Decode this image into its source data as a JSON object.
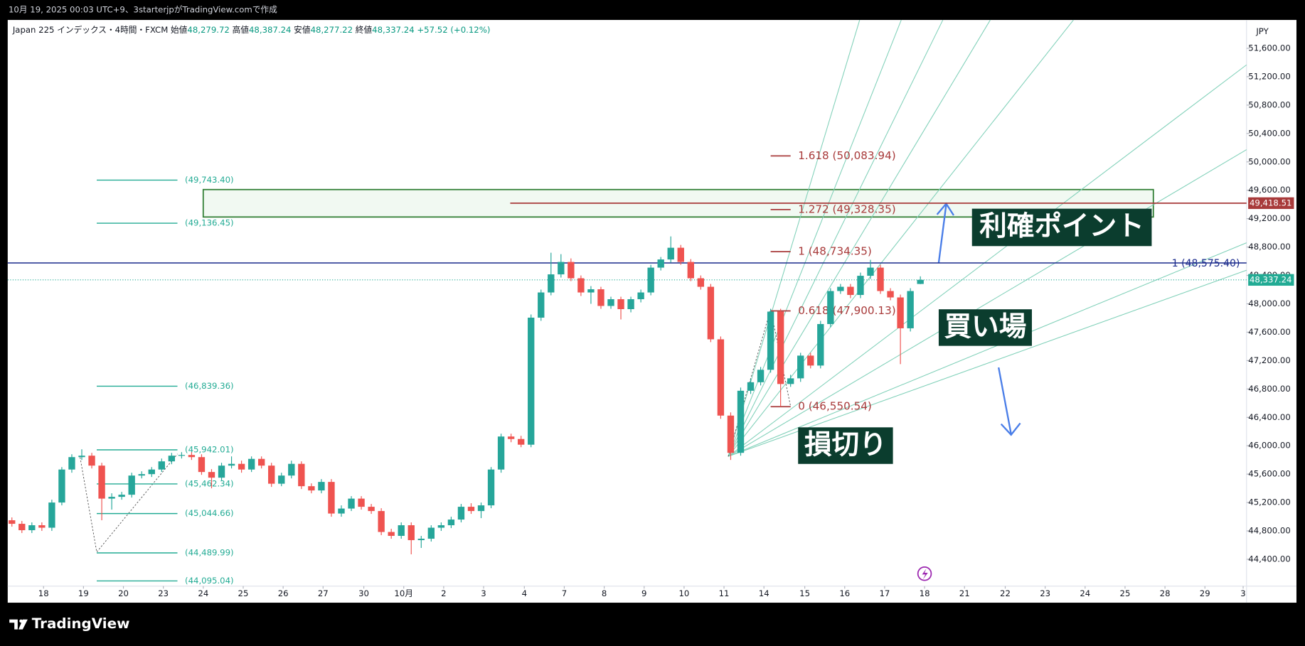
{
  "caption": "10月 19, 2025 00:03 UTC+9、3starterjpがTradingView.comで作成",
  "brand": "TradingView",
  "chart_data": {
    "type": "candlestick",
    "symbol": "Japan 225 インデックス・4時間・FXCM",
    "ohlc_info": [
      {
        "name": "始値",
        "value": 48279.72,
        "label": "48,279.72"
      },
      {
        "name": "高値",
        "value": 48387.24,
        "label": "48,387.24"
      },
      {
        "name": "安値",
        "value": 48277.22,
        "label": "48,277.22"
      },
      {
        "name": "終値",
        "value": 48337.24,
        "label": "48,337.24"
      }
    ],
    "change": {
      "value": 57.52,
      "label": "+57.52 (+0.12%)"
    },
    "currency": "JPY",
    "up_color": "#26a69a",
    "down_color": "#ef5350",
    "grid": false,
    "open": [
      44950,
      44900,
      44810,
      44880,
      44845,
      45200,
      45665,
      45840,
      45860,
      45720,
      45255,
      45280,
      45310,
      45580,
      45600,
      45665,
      45780,
      45860,
      45870,
      45840,
      45630,
      45550,
      45720,
      45745,
      45665,
      45815,
      45720,
      45465,
      45580,
      45745,
      45430,
      45370,
      45490,
      45045,
      45115,
      45255,
      45140,
      45080,
      44785,
      44730,
      44880,
      44670,
      44690,
      44845,
      44880,
      44960,
      45140,
      45080,
      45160,
      45665,
      46130,
      46095,
      46015,
      47805,
      48160,
      48415,
      48590,
      48360,
      48160,
      48205,
      47970,
      48065,
      47925,
      48065,
      48160,
      48510,
      48625,
      48790,
      48590,
      48360,
      48240,
      47500,
      46425,
      45900,
      46775,
      46895,
      47070,
      47890,
      46870,
      46950,
      47270,
      47130,
      47715,
      48180,
      48240,
      48125,
      48395,
      48510,
      48180,
      48090,
      47655,
      48279.72
    ],
    "high": [
      44990,
      44940,
      44920,
      44920,
      45240,
      45700,
      45880,
      45950,
      45900,
      45760,
      45330,
      45350,
      45620,
      45640,
      45700,
      45820,
      45900,
      45910,
      45910,
      45880,
      45670,
      45760,
      45850,
      45790,
      45850,
      45850,
      45760,
      45620,
      45790,
      45780,
      45470,
      45530,
      45530,
      45160,
      45290,
      45290,
      45180,
      45120,
      44830,
      44920,
      44920,
      44730,
      44880,
      44920,
      45000,
      45180,
      45190,
      45200,
      45700,
      46170,
      46170,
      46140,
      47850,
      48200,
      48720,
      48700,
      48640,
      48400,
      48250,
      48240,
      48100,
      48100,
      48100,
      48200,
      48550,
      48660,
      48950,
      48830,
      48630,
      48400,
      48280,
      47540,
      46470,
      46820,
      46940,
      47110,
      47930,
      47930,
      47000,
      47310,
      47310,
      47760,
      48220,
      48280,
      48280,
      48440,
      48620,
      48550,
      48220,
      48130,
      48220,
      48387.24
    ],
    "low": [
      44860,
      44770,
      44770,
      44800,
      44800,
      45160,
      45620,
      45800,
      45680,
      44950,
      45100,
      45240,
      45270,
      45540,
      45560,
      45630,
      45740,
      45820,
      45800,
      45590,
      45400,
      45510,
      45680,
      45620,
      45630,
      45680,
      45420,
      45430,
      45540,
      45390,
      45330,
      45330,
      45000,
      45000,
      45080,
      45100,
      45040,
      44740,
      44690,
      44690,
      44470,
      44560,
      44650,
      44800,
      44840,
      44920,
      45040,
      44980,
      45120,
      45620,
      46050,
      45980,
      45980,
      47760,
      48120,
      48370,
      48320,
      48110,
      48000,
      47930,
      47930,
      47780,
      47880,
      48020,
      48120,
      48470,
      48580,
      48550,
      48320,
      48200,
      47460,
      46380,
      45800,
      45860,
      46730,
      46850,
      47030,
      46550,
      46830,
      46900,
      47090,
      47090,
      47670,
      48140,
      48080,
      48080,
      48350,
      48140,
      48050,
      47150,
      47610,
      48277.22
    ],
    "close": [
      44900,
      44810,
      44880,
      44845,
      45200,
      45665,
      45840,
      45860,
      45720,
      45255,
      45280,
      45310,
      45580,
      45600,
      45665,
      45780,
      45860,
      45870,
      45840,
      45630,
      45550,
      45720,
      45745,
      45665,
      45815,
      45720,
      45465,
      45580,
      45745,
      45430,
      45370,
      45490,
      45045,
      45115,
      45255,
      45140,
      45080,
      44785,
      44730,
      44880,
      44670,
      44690,
      44845,
      44880,
      44960,
      45140,
      45080,
      45160,
      45665,
      46130,
      46095,
      46015,
      47805,
      48160,
      48415,
      48590,
      48360,
      48160,
      48205,
      47970,
      48065,
      47925,
      48065,
      48160,
      48510,
      48625,
      48790,
      48590,
      48360,
      48240,
      47500,
      46425,
      45900,
      46775,
      46895,
      47070,
      47890,
      46870,
      46950,
      47270,
      47130,
      47715,
      48180,
      48240,
      48125,
      48395,
      48510,
      48180,
      48090,
      47655,
      48180,
      48337.24
    ],
    "xlim": [
      -0.42,
      123.67
    ],
    "xticks": [
      {
        "value": 3.17,
        "label": "18"
      },
      {
        "value": 7.17,
        "label": "19"
      },
      {
        "value": 11.17,
        "label": "20"
      },
      {
        "value": 15.17,
        "label": "23"
      },
      {
        "value": 19.17,
        "label": "24"
      },
      {
        "value": 23.17,
        "label": "25"
      },
      {
        "value": 27.17,
        "label": "26"
      },
      {
        "value": 31.17,
        "label": "27"
      },
      {
        "value": 35.25,
        "label": "30"
      },
      {
        "value": 39.25,
        "label": "10月"
      },
      {
        "value": 43.25,
        "label": "2"
      },
      {
        "value": 47.25,
        "label": "3"
      },
      {
        "value": 51.33,
        "label": "4"
      },
      {
        "value": 55.33,
        "label": "7"
      },
      {
        "value": 59.33,
        "label": "8"
      },
      {
        "value": 63.33,
        "label": "9"
      },
      {
        "value": 67.33,
        "label": "10"
      },
      {
        "value": 71.33,
        "label": "11"
      },
      {
        "value": 75.33,
        "label": "14"
      },
      {
        "value": 79.42,
        "label": "15"
      },
      {
        "value": 83.42,
        "label": "16"
      },
      {
        "value": 87.42,
        "label": "17"
      },
      {
        "value": 91.42,
        "label": "18"
      },
      {
        "value": 95.42,
        "label": "21"
      },
      {
        "value": 99.5,
        "label": "22"
      },
      {
        "value": 103.5,
        "label": "23"
      },
      {
        "value": 107.5,
        "label": "24"
      },
      {
        "value": 111.5,
        "label": "25"
      },
      {
        "value": 115.5,
        "label": "28"
      },
      {
        "value": 119.5,
        "label": "29"
      },
      {
        "value": 123.33,
        "label": "3"
      }
    ],
    "ylim": [
      44010,
      52000
    ],
    "yticks": [
      {
        "value": 44400,
        "label": "44,400.00"
      },
      {
        "value": 44800,
        "label": "44,800.00"
      },
      {
        "value": 45200,
        "label": "45,200.00"
      },
      {
        "value": 45600,
        "label": "45,600.00"
      },
      {
        "value": 46000,
        "label": "46,000.00"
      },
      {
        "value": 46400,
        "label": "46,400.00"
      },
      {
        "value": 46800,
        "label": "46,800.00"
      },
      {
        "value": 47200,
        "label": "47,200.00"
      },
      {
        "value": 47600,
        "label": "47,600.00"
      },
      {
        "value": 48000,
        "label": "48,000.00"
      },
      {
        "value": 48400,
        "label": "48,400.00"
      },
      {
        "value": 48800,
        "label": "48,800.00"
      },
      {
        "value": 49200,
        "label": "49,200.00"
      },
      {
        "value": 49600,
        "label": "49,600.00"
      },
      {
        "value": 50000,
        "label": "50,000.00"
      },
      {
        "value": 50400,
        "label": "50,400.00"
      },
      {
        "value": 50800,
        "label": "50,800.00"
      },
      {
        "value": 51200,
        "label": "51,200.00"
      },
      {
        "value": 51600,
        "label": "51,600.00"
      }
    ],
    "fib_levels": [
      {
        "value": 50083.94,
        "label": "1.618 (50,083.94)"
      },
      {
        "value": 49328.35,
        "label": "1.272 (49,328.35)"
      },
      {
        "value": 48734.35,
        "label": "1 (48,734.35)"
      },
      {
        "value": 47900.13,
        "label": "0.618 (47,900.13)"
      },
      {
        "value": 46550.54,
        "label": "0 (46,550.54)"
      }
    ],
    "levels": [
      {
        "value": 49743.4,
        "label": "(49,743.40)"
      },
      {
        "value": 49136.45,
        "label": "(49,136.45)"
      },
      {
        "value": 46839.36,
        "label": "(46,839.36)"
      },
      {
        "value": 45942.01,
        "label": "(45,942.01)"
      },
      {
        "value": 45462.34,
        "label": "(45,462.34)"
      },
      {
        "value": 45044.66,
        "label": "(45,044.66)"
      },
      {
        "value": 44489.99,
        "label": "(44,489.99)"
      },
      {
        "value": 44095.04,
        "label": "(44,095.04)"
      }
    ],
    "hlines": [
      {
        "value": 48575.4,
        "label": "1 (48,575.40)",
        "color": "#1a2a8c"
      },
      {
        "value": 49418.51,
        "label": "49,418.51",
        "color": "#a83a3a"
      }
    ],
    "last_price": {
      "value": 48337.24,
      "label": "48,337.24",
      "color": "#22ab94"
    },
    "notes": [
      "利確ポイント",
      "買い場",
      "損切り"
    ]
  }
}
